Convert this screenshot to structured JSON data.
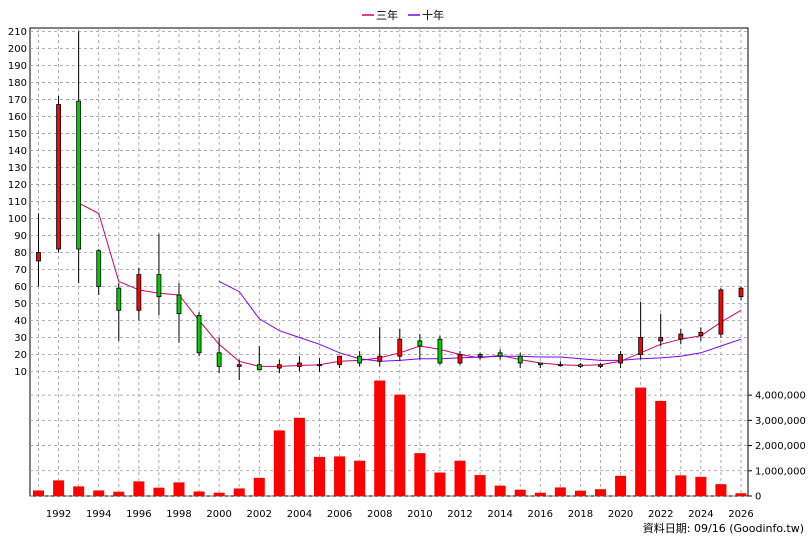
{
  "chart_data": {
    "type": "candlestick+bar",
    "legend": [
      {
        "name": "三年",
        "color": "#d0006f"
      },
      {
        "name": "十年",
        "color": "#7f00ff"
      }
    ],
    "credit": "資料日期: 09/16  (Goodinfo.tw)",
    "colors": {
      "up": "#ff0000",
      "down": "#00cc00",
      "volume": "#ff0000",
      "ma3": "#d0006f",
      "ma10": "#7f00ff",
      "grid": "#999999"
    },
    "x_ticks": [
      "1992",
      "1994",
      "1996",
      "1998",
      "2000",
      "2002",
      "2004",
      "2006",
      "2008",
      "2010",
      "2012",
      "2014",
      "2016",
      "2018",
      "2020",
      "2022",
      "2024",
      "2026"
    ],
    "price_ylim": [
      5,
      212
    ],
    "price_ticks": [
      10,
      20,
      30,
      40,
      50,
      60,
      70,
      80,
      90,
      100,
      110,
      120,
      130,
      140,
      150,
      160,
      170,
      180,
      190,
      200,
      210
    ],
    "volume_ylim": [
      0,
      4600000
    ],
    "volume_ticks": [
      {
        "v": 0,
        "label": "0"
      },
      {
        "v": 1000000,
        "label": "1,000,000"
      },
      {
        "v": 2000000,
        "label": "2,000,000"
      },
      {
        "v": 3000000,
        "label": "3,000,000"
      },
      {
        "v": 4000000,
        "label": "4,000,000"
      }
    ],
    "candles": [
      {
        "year": 1991,
        "open": 75,
        "high": 103,
        "low": 60,
        "close": 80
      },
      {
        "year": 1992,
        "open": 82,
        "high": 172,
        "low": 80,
        "close": 167
      },
      {
        "year": 1993,
        "open": 169,
        "high": 210,
        "low": 62,
        "close": 82
      },
      {
        "year": 1994,
        "open": 81,
        "high": 82,
        "low": 55,
        "close": 60
      },
      {
        "year": 1995,
        "open": 59,
        "high": 62,
        "low": 28,
        "close": 46
      },
      {
        "year": 1996,
        "open": 46,
        "high": 71,
        "low": 40,
        "close": 67
      },
      {
        "year": 1997,
        "open": 67,
        "high": 91,
        "low": 43,
        "close": 54
      },
      {
        "year": 1998,
        "open": 55,
        "high": 62,
        "low": 27,
        "close": 44
      },
      {
        "year": 1999,
        "open": 43,
        "high": 45,
        "low": 19,
        "close": 21
      },
      {
        "year": 2000,
        "open": 21,
        "high": 30,
        "low": 9,
        "close": 13
      },
      {
        "year": 2001,
        "open": 13,
        "high": 17,
        "low": 5,
        "close": 14
      },
      {
        "year": 2002,
        "open": 14,
        "high": 25,
        "low": 11,
        "close": 11
      },
      {
        "year": 2003,
        "open": 12,
        "high": 17,
        "low": 9,
        "close": 14
      },
      {
        "year": 2004,
        "open": 13,
        "high": 19,
        "low": 10,
        "close": 15
      },
      {
        "year": 2005,
        "open": 14,
        "high": 18,
        "low": 10,
        "close": 14
      },
      {
        "year": 2006,
        "open": 14,
        "high": 19,
        "low": 12,
        "close": 19
      },
      {
        "year": 2007,
        "open": 19,
        "high": 22,
        "low": 13,
        "close": 15
      },
      {
        "year": 2008,
        "open": 16,
        "high": 36,
        "low": 13,
        "close": 19
      },
      {
        "year": 2009,
        "open": 19,
        "high": 35,
        "low": 16,
        "close": 29
      },
      {
        "year": 2010,
        "open": 28,
        "high": 32,
        "low": 17,
        "close": 25
      },
      {
        "year": 2011,
        "open": 29,
        "high": 31,
        "low": 14,
        "close": 15
      },
      {
        "year": 2012,
        "open": 15,
        "high": 22,
        "low": 14,
        "close": 20
      },
      {
        "year": 2013,
        "open": 20,
        "high": 21,
        "low": 17,
        "close": 19
      },
      {
        "year": 2014,
        "open": 21,
        "high": 23,
        "low": 17,
        "close": 19
      },
      {
        "year": 2015,
        "open": 19,
        "high": 21,
        "low": 12,
        "close": 15
      },
      {
        "year": 2016,
        "open": 15,
        "high": 15,
        "low": 12,
        "close": 14
      },
      {
        "year": 2017,
        "open": 14,
        "high": 16,
        "low": 13,
        "close": 14
      },
      {
        "year": 2018,
        "open": 14,
        "high": 15,
        "low": 12,
        "close": 13
      },
      {
        "year": 2019,
        "open": 13,
        "high": 15,
        "low": 12,
        "close": 14
      },
      {
        "year": 2020,
        "open": 15,
        "high": 22,
        "low": 12,
        "close": 20
      },
      {
        "year": 2021,
        "open": 20,
        "high": 51,
        "low": 17,
        "close": 30
      },
      {
        "year": 2022,
        "open": 28,
        "high": 44,
        "low": 25,
        "close": 30
      },
      {
        "year": 2023,
        "open": 29,
        "high": 35,
        "low": 26,
        "close": 32
      },
      {
        "year": 2024,
        "open": 31,
        "high": 36,
        "low": 28,
        "close": 33
      },
      {
        "year": 2025,
        "open": 32,
        "high": 59,
        "low": 30,
        "close": 58
      },
      {
        "year": 2026,
        "open": 54,
        "high": 60,
        "low": 52,
        "close": 59
      }
    ],
    "ma3": [
      {
        "year": 1993,
        "value": 109
      },
      {
        "year": 1994,
        "value": 103
      },
      {
        "year": 1995,
        "value": 63
      },
      {
        "year": 1996,
        "value": 58
      },
      {
        "year": 1997,
        "value": 56
      },
      {
        "year": 1998,
        "value": 55
      },
      {
        "year": 1999,
        "value": 40
      },
      {
        "year": 2000,
        "value": 26
      },
      {
        "year": 2001,
        "value": 16
      },
      {
        "year": 2002,
        "value": 13
      },
      {
        "year": 2003,
        "value": 13
      },
      {
        "year": 2004,
        "value": 13.5
      },
      {
        "year": 2005,
        "value": 14
      },
      {
        "year": 2006,
        "value": 16
      },
      {
        "year": 2007,
        "value": 16.5
      },
      {
        "year": 2008,
        "value": 18
      },
      {
        "year": 2009,
        "value": 21
      },
      {
        "year": 2010,
        "value": 25
      },
      {
        "year": 2011,
        "value": 23
      },
      {
        "year": 2012,
        "value": 20
      },
      {
        "year": 2013,
        "value": 18
      },
      {
        "year": 2014,
        "value": 19.5
      },
      {
        "year": 2015,
        "value": 17
      },
      {
        "year": 2016,
        "value": 15
      },
      {
        "year": 2017,
        "value": 14
      },
      {
        "year": 2018,
        "value": 13.5
      },
      {
        "year": 2019,
        "value": 14
      },
      {
        "year": 2020,
        "value": 16
      },
      {
        "year": 2021,
        "value": 21
      },
      {
        "year": 2022,
        "value": 26
      },
      {
        "year": 2023,
        "value": 29
      },
      {
        "year": 2024,
        "value": 31
      },
      {
        "year": 2025,
        "value": 39
      },
      {
        "year": 2026,
        "value": 46
      }
    ],
    "ma10": [
      {
        "year": 2000,
        "value": 63
      },
      {
        "year": 2001,
        "value": 57
      },
      {
        "year": 2002,
        "value": 41
      },
      {
        "year": 2003,
        "value": 34
      },
      {
        "year": 2004,
        "value": 30
      },
      {
        "year": 2005,
        "value": 26
      },
      {
        "year": 2006,
        "value": 21
      },
      {
        "year": 2007,
        "value": 17.5
      },
      {
        "year": 2008,
        "value": 16
      },
      {
        "year": 2009,
        "value": 16.5
      },
      {
        "year": 2010,
        "value": 17.5
      },
      {
        "year": 2011,
        "value": 17.5
      },
      {
        "year": 2012,
        "value": 18
      },
      {
        "year": 2013,
        "value": 18.5
      },
      {
        "year": 2014,
        "value": 19
      },
      {
        "year": 2015,
        "value": 19
      },
      {
        "year": 2016,
        "value": 18.5
      },
      {
        "year": 2017,
        "value": 18.5
      },
      {
        "year": 2018,
        "value": 17.5
      },
      {
        "year": 2019,
        "value": 16.5
      },
      {
        "year": 2020,
        "value": 16.5
      },
      {
        "year": 2021,
        "value": 17.5
      },
      {
        "year": 2022,
        "value": 18
      },
      {
        "year": 2023,
        "value": 19
      },
      {
        "year": 2024,
        "value": 21
      },
      {
        "year": 2025,
        "value": 25
      },
      {
        "year": 2026,
        "value": 29
      }
    ],
    "volume": [
      {
        "year": 1991,
        "value": 220000
      },
      {
        "year": 1992,
        "value": 620000
      },
      {
        "year": 1993,
        "value": 380000
      },
      {
        "year": 1994,
        "value": 220000
      },
      {
        "year": 1995,
        "value": 170000
      },
      {
        "year": 1996,
        "value": 580000
      },
      {
        "year": 1997,
        "value": 330000
      },
      {
        "year": 1998,
        "value": 540000
      },
      {
        "year": 1999,
        "value": 180000
      },
      {
        "year": 2000,
        "value": 130000
      },
      {
        "year": 2001,
        "value": 300000
      },
      {
        "year": 2002,
        "value": 720000
      },
      {
        "year": 2003,
        "value": 2600000
      },
      {
        "year": 2004,
        "value": 3100000
      },
      {
        "year": 2005,
        "value": 1550000
      },
      {
        "year": 2006,
        "value": 1570000
      },
      {
        "year": 2007,
        "value": 1400000
      },
      {
        "year": 2008,
        "value": 4580000
      },
      {
        "year": 2009,
        "value": 4020000
      },
      {
        "year": 2010,
        "value": 1700000
      },
      {
        "year": 2011,
        "value": 930000
      },
      {
        "year": 2012,
        "value": 1400000
      },
      {
        "year": 2013,
        "value": 830000
      },
      {
        "year": 2014,
        "value": 410000
      },
      {
        "year": 2015,
        "value": 250000
      },
      {
        "year": 2016,
        "value": 130000
      },
      {
        "year": 2017,
        "value": 340000
      },
      {
        "year": 2018,
        "value": 210000
      },
      {
        "year": 2019,
        "value": 270000
      },
      {
        "year": 2020,
        "value": 800000
      },
      {
        "year": 2021,
        "value": 4300000
      },
      {
        "year": 2022,
        "value": 3770000
      },
      {
        "year": 2023,
        "value": 820000
      },
      {
        "year": 2024,
        "value": 760000
      },
      {
        "year": 2025,
        "value": 470000
      },
      {
        "year": 2026,
        "value": 110000
      }
    ]
  }
}
